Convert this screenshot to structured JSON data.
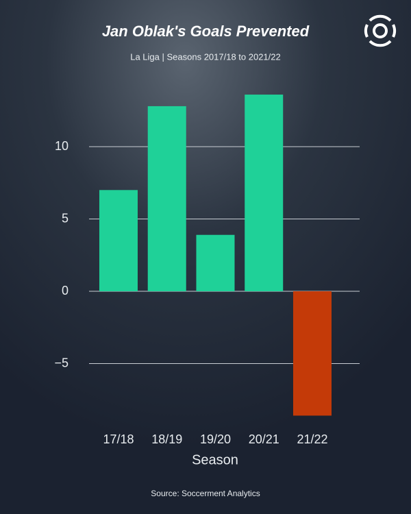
{
  "chart_data": {
    "type": "bar",
    "title": "Jan Oblak's Goals Prevented",
    "subtitle": "La Liga | Seasons 2017/18  to 2021/22",
    "x_label": "Season",
    "source": "Source: Soccerment Analytics",
    "categories": [
      "17/18",
      "18/19",
      "19/20",
      "20/21",
      "21/22"
    ],
    "values": [
      7.0,
      12.8,
      3.9,
      13.6,
      -8.6
    ],
    "colors": [
      "#1fd198",
      "#1fd198",
      "#1fd198",
      "#1fd198",
      "#c43a08"
    ],
    "ylim": [
      -9.7,
      14.5
    ],
    "yticks": [
      {
        "value": -5,
        "label": "−5"
      },
      0,
      5,
      10
    ],
    "grid": true
  }
}
